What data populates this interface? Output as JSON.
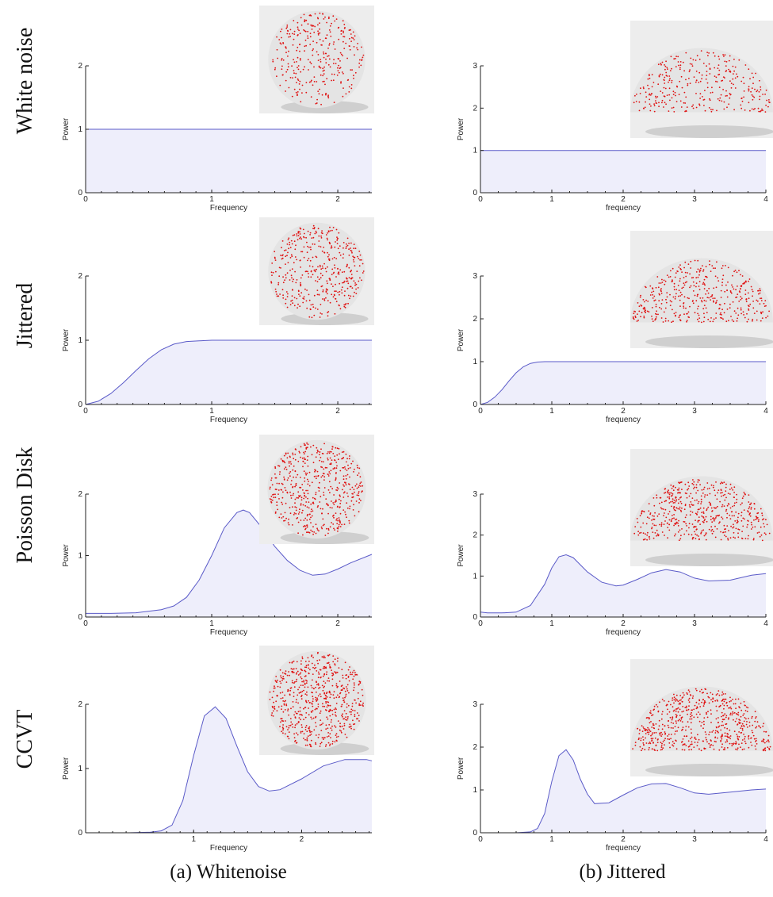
{
  "row_labels": [
    "White noise",
    "Jittered",
    "Poisson Disk",
    "CCVT"
  ],
  "captions": {
    "a": "(a) Whitenoise",
    "b": "(b) Jittered"
  },
  "colors": {
    "curve": "#5a5ac8",
    "fill": "#eeeefb",
    "points": "#e01010",
    "sphere": "#e4e4e4"
  },
  "chart_data": [
    {
      "id": "a-white",
      "type": "area",
      "column": "a",
      "row": 0,
      "xlabel": "Frequency",
      "ylabel": "Power",
      "xlim": [
        0,
        2.27
      ],
      "ylim": [
        0,
        2
      ],
      "xticks": [
        0,
        1,
        2
      ],
      "yticks": [
        0,
        1,
        2
      ],
      "x": [
        0,
        0.25,
        0.5,
        1.0,
        1.5,
        2.0,
        2.27
      ],
      "y": [
        1.0,
        1.0,
        1.0,
        1.0,
        1.0,
        1.0,
        1.0
      ]
    },
    {
      "id": "b-white",
      "type": "area",
      "column": "b",
      "row": 0,
      "xlabel": "frequency",
      "ylabel": "Power",
      "xlim": [
        0,
        4
      ],
      "ylim": [
        0,
        3
      ],
      "xticks": [
        0,
        1,
        2,
        3,
        4
      ],
      "yticks": [
        0,
        1,
        2,
        3
      ],
      "x": [
        0,
        1,
        2,
        3,
        4
      ],
      "y": [
        1.0,
        1.0,
        1.0,
        1.0,
        1.0
      ]
    },
    {
      "id": "a-jittered",
      "type": "area",
      "column": "a",
      "row": 1,
      "xlabel": "Frequency",
      "ylabel": "Power",
      "xlim": [
        0,
        2.27
      ],
      "ylim": [
        0,
        2
      ],
      "xticks": [
        0,
        1,
        2
      ],
      "yticks": [
        0,
        1,
        2
      ],
      "x": [
        0,
        0.1,
        0.2,
        0.3,
        0.4,
        0.5,
        0.6,
        0.7,
        0.8,
        0.9,
        1.0,
        1.5,
        2.0,
        2.27
      ],
      "y": [
        0,
        0.05,
        0.17,
        0.34,
        0.53,
        0.71,
        0.85,
        0.94,
        0.98,
        0.99,
        1.0,
        1.0,
        1.0,
        1.0
      ]
    },
    {
      "id": "b-jittered",
      "type": "area",
      "column": "b",
      "row": 1,
      "xlabel": "frequency",
      "ylabel": "Power",
      "xlim": [
        0,
        4
      ],
      "ylim": [
        0,
        3
      ],
      "xticks": [
        0,
        1,
        2,
        3,
        4
      ],
      "yticks": [
        0,
        1,
        2,
        3
      ],
      "x": [
        0,
        0.1,
        0.2,
        0.3,
        0.4,
        0.5,
        0.6,
        0.7,
        0.8,
        0.9,
        1.0,
        2.0,
        3.0,
        4.0
      ],
      "y": [
        0,
        0.05,
        0.17,
        0.34,
        0.55,
        0.74,
        0.88,
        0.96,
        0.99,
        1.0,
        1.0,
        1.0,
        1.0,
        1.0
      ]
    },
    {
      "id": "a-poisson",
      "type": "area",
      "column": "a",
      "row": 2,
      "xlabel": "Frequency",
      "ylabel": "Power",
      "xlim": [
        0,
        2.27
      ],
      "ylim": [
        0,
        2
      ],
      "xticks": [
        0,
        1,
        2
      ],
      "yticks": [
        0,
        1,
        2
      ],
      "x": [
        0,
        0.2,
        0.4,
        0.6,
        0.7,
        0.8,
        0.9,
        1.0,
        1.1,
        1.2,
        1.25,
        1.3,
        1.4,
        1.5,
        1.6,
        1.7,
        1.8,
        1.9,
        2.0,
        2.1,
        2.27
      ],
      "y": [
        0.06,
        0.06,
        0.07,
        0.12,
        0.18,
        0.32,
        0.6,
        1.0,
        1.45,
        1.7,
        1.74,
        1.7,
        1.45,
        1.15,
        0.92,
        0.76,
        0.68,
        0.7,
        0.78,
        0.88,
        1.02
      ]
    },
    {
      "id": "b-poisson",
      "type": "area",
      "column": "b",
      "row": 2,
      "xlabel": "frequency",
      "ylabel": "Power",
      "xlim": [
        0,
        4
      ],
      "ylim": [
        0,
        3
      ],
      "xticks": [
        0,
        1,
        2,
        3,
        4
      ],
      "yticks": [
        0,
        1,
        2,
        3
      ],
      "x": [
        0,
        0.1,
        0.3,
        0.5,
        0.7,
        0.9,
        1.0,
        1.1,
        1.2,
        1.3,
        1.5,
        1.7,
        1.9,
        2.0,
        2.2,
        2.4,
        2.6,
        2.8,
        3.0,
        3.2,
        3.5,
        3.8,
        4.0
      ],
      "y": [
        0.12,
        0.1,
        0.1,
        0.12,
        0.28,
        0.8,
        1.2,
        1.47,
        1.52,
        1.45,
        1.1,
        0.85,
        0.76,
        0.78,
        0.92,
        1.08,
        1.16,
        1.1,
        0.95,
        0.88,
        0.9,
        1.02,
        1.06
      ]
    },
    {
      "id": "a-ccvt",
      "type": "area",
      "column": "a",
      "row": 3,
      "xlabel": "Frequency",
      "ylabel": "Power",
      "xlim": [
        0,
        2.65
      ],
      "ylim": [
        0,
        2
      ],
      "xticks": [
        1,
        2
      ],
      "yticks": [
        0,
        1,
        2
      ],
      "x": [
        0,
        0.4,
        0.6,
        0.7,
        0.8,
        0.9,
        1.0,
        1.1,
        1.2,
        1.3,
        1.4,
        1.5,
        1.6,
        1.7,
        1.8,
        2.0,
        2.2,
        2.4,
        2.6,
        2.65
      ],
      "y": [
        0,
        0,
        0.01,
        0.03,
        0.12,
        0.5,
        1.2,
        1.82,
        1.96,
        1.78,
        1.35,
        0.95,
        0.72,
        0.65,
        0.67,
        0.84,
        1.04,
        1.14,
        1.14,
        1.12
      ]
    },
    {
      "id": "b-ccvt",
      "type": "area",
      "column": "b",
      "row": 3,
      "xlabel": "frequency",
      "ylabel": "Power",
      "xlim": [
        0,
        4
      ],
      "ylim": [
        0,
        3
      ],
      "xticks": [
        0,
        1,
        2,
        3,
        4
      ],
      "yticks": [
        0,
        1,
        2,
        3
      ],
      "x": [
        0,
        0.5,
        0.7,
        0.8,
        0.9,
        1.0,
        1.1,
        1.2,
        1.3,
        1.4,
        1.5,
        1.6,
        1.8,
        2.0,
        2.2,
        2.4,
        2.6,
        2.8,
        3.0,
        3.2,
        3.5,
        3.8,
        4.0
      ],
      "y": [
        0,
        0,
        0.02,
        0.1,
        0.45,
        1.2,
        1.8,
        1.94,
        1.7,
        1.25,
        0.9,
        0.68,
        0.7,
        0.88,
        1.05,
        1.14,
        1.15,
        1.05,
        0.93,
        0.9,
        0.95,
        1.0,
        1.02
      ]
    }
  ]
}
